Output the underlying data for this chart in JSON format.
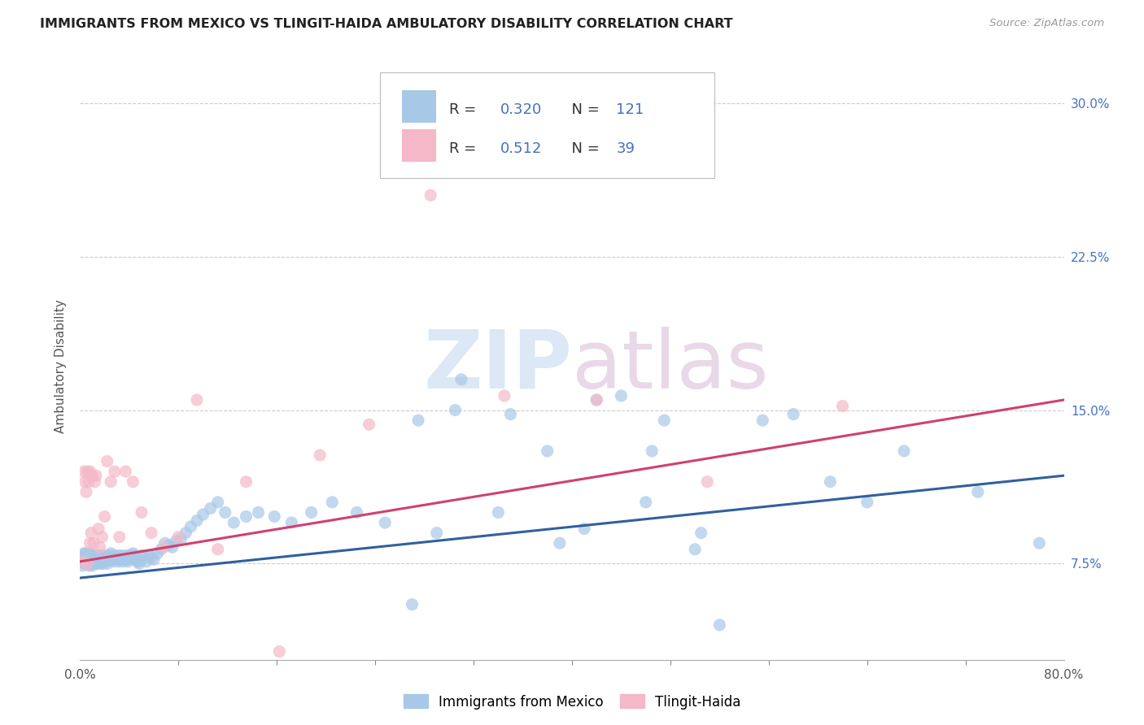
{
  "title": "IMMIGRANTS FROM MEXICO VS TLINGIT-HAIDA AMBULATORY DISABILITY CORRELATION CHART",
  "source": "Source: ZipAtlas.com",
  "ylabel_label": "Ambulatory Disability",
  "legend_bottom": [
    "Immigrants from Mexico",
    "Tlingit-Haida"
  ],
  "blue_R": "0.320",
  "blue_N": "121",
  "pink_R": "0.512",
  "pink_N": "39",
  "blue_color": "#a8c8e8",
  "pink_color": "#f4b8c8",
  "blue_line_color": "#3060a0",
  "pink_line_color": "#d04070",
  "background_color": "#ffffff",
  "watermark_zip": "ZIP",
  "watermark_atlas": "atlas",
  "blue_scatter_x": [
    0.001,
    0.002,
    0.003,
    0.003,
    0.004,
    0.004,
    0.005,
    0.005,
    0.005,
    0.006,
    0.006,
    0.007,
    0.007,
    0.007,
    0.008,
    0.008,
    0.008,
    0.009,
    0.009,
    0.01,
    0.01,
    0.01,
    0.011,
    0.011,
    0.012,
    0.012,
    0.013,
    0.013,
    0.014,
    0.014,
    0.015,
    0.015,
    0.016,
    0.016,
    0.017,
    0.017,
    0.018,
    0.018,
    0.019,
    0.019,
    0.02,
    0.021,
    0.022,
    0.023,
    0.024,
    0.025,
    0.026,
    0.027,
    0.028,
    0.03,
    0.031,
    0.032,
    0.033,
    0.035,
    0.036,
    0.037,
    0.038,
    0.039,
    0.04,
    0.041,
    0.042,
    0.043,
    0.044,
    0.045,
    0.046,
    0.047,
    0.048,
    0.05,
    0.052,
    0.054,
    0.056,
    0.058,
    0.06,
    0.063,
    0.066,
    0.069,
    0.072,
    0.075,
    0.078,
    0.082,
    0.086,
    0.09,
    0.095,
    0.1,
    0.106,
    0.112,
    0.118,
    0.125,
    0.135,
    0.145,
    0.158,
    0.172,
    0.188,
    0.205,
    0.225,
    0.248,
    0.275,
    0.305,
    0.34,
    0.38,
    0.42,
    0.46,
    0.505,
    0.555,
    0.61,
    0.67,
    0.73,
    0.78,
    0.58,
    0.64,
    0.41,
    0.35,
    0.29,
    0.44,
    0.5,
    0.31,
    0.465,
    0.52,
    0.39,
    0.475,
    0.27
  ],
  "blue_scatter_y": [
    0.076,
    0.074,
    0.078,
    0.08,
    0.075,
    0.079,
    0.076,
    0.078,
    0.08,
    0.075,
    0.077,
    0.074,
    0.076,
    0.079,
    0.075,
    0.078,
    0.08,
    0.076,
    0.078,
    0.074,
    0.077,
    0.079,
    0.075,
    0.078,
    0.076,
    0.079,
    0.075,
    0.077,
    0.076,
    0.079,
    0.075,
    0.078,
    0.076,
    0.079,
    0.075,
    0.078,
    0.076,
    0.079,
    0.075,
    0.078,
    0.076,
    0.078,
    0.075,
    0.079,
    0.077,
    0.08,
    0.077,
    0.076,
    0.079,
    0.078,
    0.076,
    0.079,
    0.077,
    0.076,
    0.079,
    0.078,
    0.077,
    0.076,
    0.079,
    0.078,
    0.077,
    0.08,
    0.079,
    0.078,
    0.077,
    0.076,
    0.075,
    0.079,
    0.078,
    0.076,
    0.079,
    0.078,
    0.077,
    0.08,
    0.082,
    0.085,
    0.084,
    0.083,
    0.086,
    0.087,
    0.09,
    0.093,
    0.096,
    0.099,
    0.102,
    0.105,
    0.1,
    0.095,
    0.098,
    0.1,
    0.098,
    0.095,
    0.1,
    0.105,
    0.1,
    0.095,
    0.145,
    0.15,
    0.1,
    0.13,
    0.155,
    0.105,
    0.09,
    0.145,
    0.115,
    0.13,
    0.11,
    0.085,
    0.148,
    0.105,
    0.092,
    0.148,
    0.09,
    0.157,
    0.082,
    0.165,
    0.13,
    0.045,
    0.085,
    0.145,
    0.055
  ],
  "pink_scatter_x": [
    0.002,
    0.003,
    0.004,
    0.005,
    0.006,
    0.006,
    0.007,
    0.008,
    0.008,
    0.009,
    0.01,
    0.011,
    0.012,
    0.013,
    0.015,
    0.016,
    0.018,
    0.02,
    0.022,
    0.025,
    0.028,
    0.032,
    0.037,
    0.043,
    0.05,
    0.058,
    0.068,
    0.08,
    0.095,
    0.112,
    0.135,
    0.162,
    0.195,
    0.235,
    0.285,
    0.345,
    0.42,
    0.51,
    0.62
  ],
  "pink_scatter_y": [
    0.076,
    0.12,
    0.115,
    0.11,
    0.075,
    0.12,
    0.115,
    0.085,
    0.12,
    0.09,
    0.118,
    0.085,
    0.115,
    0.118,
    0.092,
    0.083,
    0.088,
    0.098,
    0.125,
    0.115,
    0.12,
    0.088,
    0.12,
    0.115,
    0.1,
    0.09,
    0.083,
    0.088,
    0.155,
    0.082,
    0.115,
    0.032,
    0.128,
    0.143,
    0.255,
    0.157,
    0.155,
    0.115,
    0.152
  ],
  "xlim": [
    0.0,
    0.8
  ],
  "ylim": [
    0.028,
    0.315
  ],
  "y_tick_vals": [
    0.075,
    0.15,
    0.225,
    0.3
  ],
  "y_tick_labels": [
    "7.5%",
    "15.0%",
    "22.5%",
    "30.0%"
  ],
  "x_minor_ticks": [
    0.0,
    0.08,
    0.16,
    0.24,
    0.32,
    0.4,
    0.48,
    0.56,
    0.64,
    0.72,
    0.8
  ],
  "blue_trend_x": [
    0.0,
    0.8
  ],
  "blue_trend_y": [
    0.068,
    0.118
  ],
  "pink_trend_x": [
    0.0,
    0.8
  ],
  "pink_trend_y": [
    0.076,
    0.155
  ]
}
